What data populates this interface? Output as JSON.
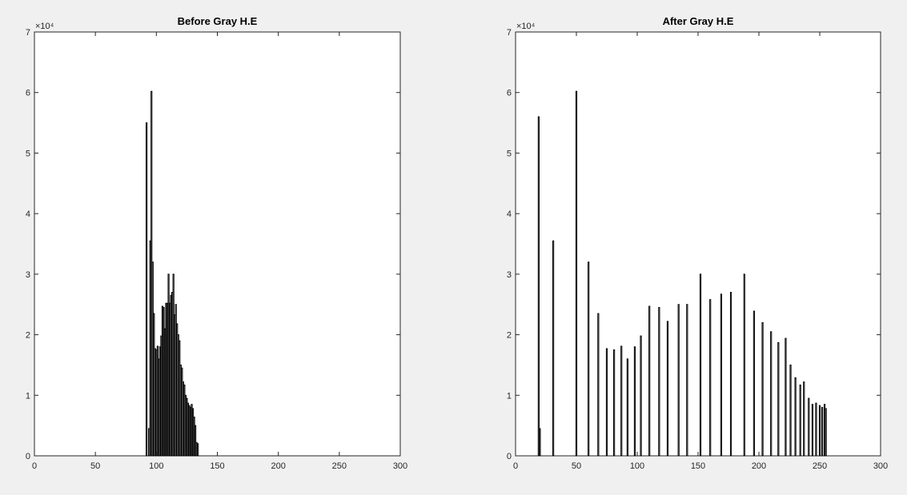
{
  "chart_data": [
    {
      "type": "bar",
      "title": "Before Gray H.E",
      "xlabel": "",
      "ylabel": "",
      "xlim": [
        0,
        300
      ],
      "ylim": [
        0,
        70000
      ],
      "xticks": [
        "0",
        "50",
        "100",
        "150",
        "200",
        "250",
        "300"
      ],
      "yticks": [
        "0",
        "1",
        "2",
        "3",
        "4",
        "5",
        "6",
        "7"
      ],
      "y_exponent_label": "×10⁴",
      "grid": false,
      "x": [
        92,
        93,
        94,
        95,
        96,
        97,
        98,
        99,
        100,
        101,
        102,
        103,
        104,
        105,
        106,
        107,
        108,
        109,
        110,
        111,
        112,
        113,
        114,
        115,
        116,
        117,
        118,
        119,
        120,
        121,
        122,
        123,
        124,
        125,
        126,
        127,
        128,
        129,
        130,
        131,
        132,
        133,
        134,
        135,
        136
      ],
      "values": [
        55000,
        0,
        4500,
        35500,
        60200,
        32000,
        23500,
        17700,
        17500,
        18100,
        16000,
        18000,
        19800,
        24700,
        24500,
        21000,
        25200,
        25200,
        30000,
        25200,
        26500,
        27000,
        30000,
        23300,
        25000,
        21800,
        20000,
        19000,
        15000,
        14500,
        12200,
        11700,
        10000,
        9500,
        8700,
        8300,
        8000,
        8500,
        7800,
        6400,
        5000,
        2200,
        2000,
        0,
        0
      ]
    },
    {
      "type": "bar",
      "title": "After Gray H.E",
      "xlabel": "",
      "ylabel": "",
      "xlim": [
        0,
        300
      ],
      "ylim": [
        0,
        70000
      ],
      "xticks": [
        "0",
        "50",
        "100",
        "150",
        "200",
        "250",
        "300"
      ],
      "yticks": [
        "0",
        "1",
        "2",
        "3",
        "4",
        "5",
        "6",
        "7"
      ],
      "y_exponent_label": "×10⁴",
      "grid": false,
      "x": [
        19,
        20,
        31,
        50,
        60,
        68,
        75,
        81,
        87,
        92,
        98,
        103,
        110,
        118,
        125,
        134,
        141,
        152,
        160,
        169,
        177,
        188,
        196,
        203,
        210,
        216,
        222,
        226,
        230,
        234,
        237,
        241,
        244,
        247,
        250,
        252,
        254,
        255
      ],
      "values": [
        56000,
        4500,
        35500,
        60200,
        32000,
        23500,
        17700,
        17500,
        18100,
        16000,
        18000,
        19800,
        24700,
        24500,
        22200,
        25000,
        25000,
        30000,
        25800,
        26700,
        27000,
        30000,
        23900,
        22000,
        20500,
        18700,
        19400,
        15000,
        12900,
        11700,
        12200,
        9500,
        8500,
        8700,
        8300,
        8000,
        8500,
        7800
      ]
    }
  ]
}
